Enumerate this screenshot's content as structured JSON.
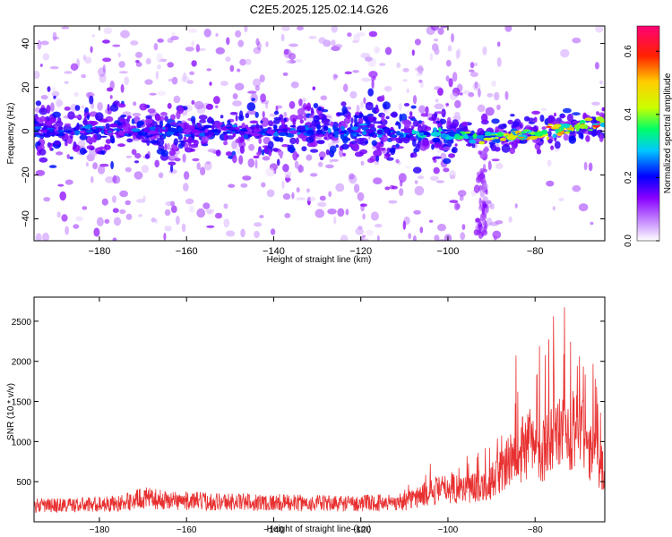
{
  "title": "C2E5.2025.125.02.14.G26",
  "chart_data": [
    {
      "type": "heatmap",
      "title": "C2E5.2025.125.02.14.G26",
      "xlabel": "Height of straight line (km)",
      "ylabel": "Frequency (Hz)",
      "xlim": [
        -195,
        -64
      ],
      "ylim": [
        -50,
        48
      ],
      "xticks": [
        -180,
        -160,
        -140,
        -120,
        -100,
        -80
      ],
      "yticks": [
        -40,
        -20,
        0,
        20,
        40
      ],
      "colorbar": {
        "label": "Normalized spectral amplitude",
        "range": [
          0,
          0.68
        ],
        "ticks": [
          0.0,
          0.2,
          0.4,
          0.6
        ],
        "colors": [
          "#ffffff",
          "#cc99ff",
          "#8800ff",
          "#0000ff",
          "#00c8ff",
          "#00ff66",
          "#ccff00",
          "#ffcc00",
          "#ff2200",
          "#ff0077"
        ]
      },
      "ridge": {
        "x": [
          -195,
          -180,
          -160,
          -140,
          -120,
          -100,
          -90,
          -80,
          -70,
          -64
        ],
        "center_frequency": [
          0,
          0,
          0,
          0,
          0,
          -2,
          -3,
          -1,
          2,
          4
        ],
        "peak_amplitude": [
          0.25,
          0.25,
          0.25,
          0.25,
          0.27,
          0.35,
          0.45,
          0.55,
          0.62,
          0.6
        ]
      },
      "grid": false
    },
    {
      "type": "line",
      "xlabel": "Height of straight line (km)",
      "ylabel": "SNR (10 * v/v)",
      "xlim": [
        -195,
        -64
      ],
      "ylim": [
        0,
        2800
      ],
      "xticks": [
        -180,
        -160,
        -140,
        -120,
        -100,
        -80
      ],
      "yticks": [
        500,
        1000,
        1500,
        2000,
        2500
      ],
      "color": "#e83030",
      "series": [
        {
          "x": [
            -195,
            -185,
            -175,
            -170,
            -165,
            -160,
            -150,
            -140,
            -130,
            -120,
            -110,
            -105,
            -100,
            -95,
            -90,
            -85,
            -82,
            -78,
            -75,
            -70,
            -68,
            -64
          ],
          "values": [
            200,
            210,
            230,
            300,
            270,
            260,
            250,
            240,
            230,
            230,
            250,
            350,
            420,
            420,
            500,
            800,
            950,
            900,
            1100,
            1200,
            900,
            600
          ]
        }
      ],
      "grid": false
    }
  ]
}
